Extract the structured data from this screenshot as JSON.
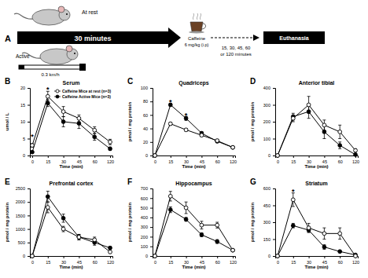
{
  "diagram": {
    "label": "A",
    "rest_label": "At rest",
    "active_label": "Active",
    "duration": "30 minutes",
    "speed": "0.3 km/h",
    "drug": "Caffeine",
    "dose": "6 mg/kg (i.p)",
    "times": [
      "15, 30, 45, 60",
      "or 120 minutes"
    ],
    "endpoint": "Euthanasia"
  },
  "chart_data": [
    {
      "type": "line",
      "panel": "B",
      "title": "Serum",
      "x_label": "Time (min)",
      "y_label": "umol / L",
      "categories": [
        "0",
        "15",
        "30",
        "45",
        "60",
        "120"
      ],
      "ylim": [
        0,
        20
      ],
      "yticks": [
        0,
        5,
        10,
        15,
        20
      ],
      "legend": "top-right",
      "series": [
        {
          "name": "Caffeine Mice at rest (n=3)",
          "color": "#ffffff",
          "marker": "circle",
          "values": [
            3,
            17.5,
            13,
            11,
            7.5,
            4
          ],
          "errors": [
            0.5,
            1.5,
            1.5,
            1,
            1,
            0.8
          ]
        },
        {
          "name": "Caffeine Active Mice (n=3)",
          "color": "#000000",
          "marker": "circle",
          "values": [
            1,
            15.5,
            10,
            9.5,
            5.5,
            2
          ],
          "errors": [
            0.3,
            1,
            1.5,
            1.5,
            1,
            0.5
          ]
        }
      ],
      "annotations": [
        {
          "text": "*",
          "x": "0",
          "y": 5.5
        },
        {
          "text": "*",
          "x": "15",
          "y": 19.5
        }
      ]
    },
    {
      "type": "line",
      "panel": "C",
      "title": "Quadriceps",
      "x_label": "Time (min)",
      "y_label": "pmol / mg protein",
      "categories": [
        "0",
        "15",
        "30",
        "45",
        "60",
        "120"
      ],
      "ylim": [
        0,
        100
      ],
      "yticks": [
        0,
        20,
        40,
        60,
        80,
        100
      ],
      "series": [
        {
          "color": "#ffffff",
          "marker": "circle",
          "values": [
            0,
            47,
            38,
            30,
            22,
            12
          ],
          "errors": [
            0,
            2,
            2,
            2,
            2,
            1
          ]
        },
        {
          "color": "#000000",
          "marker": "circle",
          "values": [
            0,
            75,
            55,
            33,
            21,
            12
          ],
          "errors": [
            0,
            2,
            3,
            2,
            2,
            1
          ]
        }
      ],
      "annotations": [
        {
          "text": "*",
          "x": "15",
          "y": 79
        },
        {
          "text": "*",
          "x": "30",
          "y": 59
        }
      ]
    },
    {
      "type": "line",
      "panel": "D",
      "title": "Anterior tibial",
      "x_label": "Time (min)",
      "y_label": "pmol / mg protein",
      "categories": [
        "0",
        "15",
        "30",
        "45",
        "60",
        "120"
      ],
      "ylim": [
        0,
        400
      ],
      "yticks": [
        0,
        100,
        200,
        300,
        400
      ],
      "series": [
        {
          "color": "#ffffff",
          "marker": "circle",
          "values": [
            0,
            220,
            300,
            180,
            140,
            30
          ],
          "errors": [
            0,
            20,
            50,
            30,
            40,
            10
          ]
        },
        {
          "color": "#000000",
          "marker": "circle",
          "values": [
            0,
            230,
            260,
            140,
            60,
            5
          ],
          "errors": [
            0,
            20,
            40,
            40,
            20,
            5
          ]
        }
      ]
    },
    {
      "type": "line",
      "panel": "E",
      "title": "Prefrontal cortex",
      "x_label": "Time (min)",
      "y_label": "pmol / mg protein",
      "categories": [
        "0",
        "15",
        "30",
        "45",
        "60",
        "120"
      ],
      "ylim": [
        0,
        2500
      ],
      "yticks": [
        0,
        500,
        1000,
        1500,
        2000,
        2500
      ],
      "series": [
        {
          "color": "#ffffff",
          "marker": "circle",
          "values": [
            0,
            1800,
            1000,
            700,
            600,
            150
          ],
          "errors": [
            0,
            200,
            100,
            100,
            100,
            50
          ]
        },
        {
          "color": "#000000",
          "marker": "circle",
          "values": [
            0,
            2200,
            1400,
            700,
            500,
            300
          ],
          "errors": [
            0,
            200,
            150,
            100,
            100,
            50
          ]
        }
      ]
    },
    {
      "type": "line",
      "panel": "F",
      "title": "Hippocampus",
      "x_label": "Time (min)",
      "y_label": "pmol / mg protein",
      "categories": [
        "0",
        "15",
        "30",
        "45",
        "60",
        "120"
      ],
      "ylim": [
        0,
        700
      ],
      "yticks": [
        0,
        100,
        200,
        300,
        400,
        500,
        600,
        700
      ],
      "series": [
        {
          "color": "#ffffff",
          "marker": "circle",
          "values": [
            0,
            620,
            500,
            320,
            320,
            60
          ],
          "errors": [
            0,
            50,
            60,
            40,
            30,
            10
          ]
        },
        {
          "color": "#000000",
          "marker": "circle",
          "values": [
            0,
            480,
            380,
            220,
            150,
            60
          ],
          "errors": [
            0,
            30,
            20,
            20,
            20,
            10
          ]
        }
      ]
    },
    {
      "type": "line",
      "panel": "G",
      "title": "Striatum",
      "x_label": "Time (min)",
      "y_label": "pmol / mg protein",
      "categories": [
        "0",
        "15",
        "30",
        "45",
        "60",
        "120"
      ],
      "ylim": [
        0,
        600
      ],
      "yticks": [
        0,
        150,
        300,
        450,
        600
      ],
      "series": [
        {
          "color": "#ffffff",
          "marker": "circle",
          "values": [
            0,
            500,
            250,
            200,
            200,
            0
          ],
          "errors": [
            0,
            60,
            40,
            50,
            50,
            5
          ]
        },
        {
          "color": "#000000",
          "marker": "circle",
          "values": [
            0,
            270,
            230,
            80,
            40,
            10
          ],
          "errors": [
            0,
            20,
            20,
            20,
            10,
            5
          ]
        }
      ],
      "annotations": [
        {
          "text": "*",
          "x": "15",
          "y": 575
        }
      ]
    }
  ]
}
